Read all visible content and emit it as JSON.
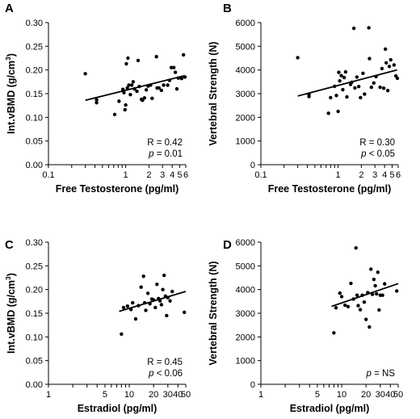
{
  "chart_data": [
    {
      "panel": "A",
      "type": "scatter",
      "xlabel": "Free Testosterone (pg/ml)",
      "ylabel_main": "Int.vBMD  (g/cm",
      "ylabel_sup": "3",
      "ylabel_end": ")",
      "xscale": "log",
      "xlim": [
        0.1,
        6
      ],
      "ylim": [
        0,
        0.3
      ],
      "xticks": [
        0.1,
        1,
        2,
        3,
        4,
        5,
        6
      ],
      "xtick_labels": [
        "0.1",
        "1",
        "2",
        "3",
        "4",
        "5",
        "6"
      ],
      "yticks": [
        0,
        0.05,
        0.1,
        0.15,
        0.2,
        0.25,
        0.3
      ],
      "ytick_labels": [
        "0.00",
        "0.05",
        "0.10",
        "0.15",
        "0.20",
        "0.25",
        "0.30"
      ],
      "stats": [
        {
          "label": "R",
          "value": "0.42"
        },
        {
          "label": "p",
          "value": "0.01",
          "op": "="
        }
      ],
      "trend": {
        "x": [
          0.3,
          5.8
        ],
        "y": [
          0.136,
          0.188
        ]
      },
      "points": [
        {
          "x": 0.3,
          "y": 0.192
        },
        {
          "x": 0.42,
          "y": 0.137
        },
        {
          "x": 0.42,
          "y": 0.131
        },
        {
          "x": 0.72,
          "y": 0.106
        },
        {
          "x": 0.82,
          "y": 0.134
        },
        {
          "x": 0.92,
          "y": 0.159
        },
        {
          "x": 0.95,
          "y": 0.152
        },
        {
          "x": 0.98,
          "y": 0.116
        },
        {
          "x": 1.0,
          "y": 0.126
        },
        {
          "x": 1.02,
          "y": 0.213
        },
        {
          "x": 1.05,
          "y": 0.162
        },
        {
          "x": 1.07,
          "y": 0.225
        },
        {
          "x": 1.1,
          "y": 0.168
        },
        {
          "x": 1.15,
          "y": 0.148
        },
        {
          "x": 1.2,
          "y": 0.168
        },
        {
          "x": 1.25,
          "y": 0.175
        },
        {
          "x": 1.3,
          "y": 0.16
        },
        {
          "x": 1.4,
          "y": 0.155
        },
        {
          "x": 1.45,
          "y": 0.22
        },
        {
          "x": 1.5,
          "y": 0.165
        },
        {
          "x": 1.6,
          "y": 0.138
        },
        {
          "x": 1.65,
          "y": 0.136
        },
        {
          "x": 1.75,
          "y": 0.141
        },
        {
          "x": 1.85,
          "y": 0.158
        },
        {
          "x": 1.95,
          "y": 0.166
        },
        {
          "x": 2.1,
          "y": 0.168
        },
        {
          "x": 2.2,
          "y": 0.14
        },
        {
          "x": 2.5,
          "y": 0.228
        },
        {
          "x": 2.55,
          "y": 0.162
        },
        {
          "x": 2.7,
          "y": 0.162
        },
        {
          "x": 2.9,
          "y": 0.157
        },
        {
          "x": 3.1,
          "y": 0.168
        },
        {
          "x": 3.5,
          "y": 0.168
        },
        {
          "x": 3.7,
          "y": 0.178
        },
        {
          "x": 3.9,
          "y": 0.205
        },
        {
          "x": 4.2,
          "y": 0.205
        },
        {
          "x": 4.4,
          "y": 0.195
        },
        {
          "x": 4.6,
          "y": 0.16
        },
        {
          "x": 4.8,
          "y": 0.183
        },
        {
          "x": 5.3,
          "y": 0.182
        },
        {
          "x": 5.6,
          "y": 0.232
        },
        {
          "x": 5.85,
          "y": 0.185
        }
      ]
    },
    {
      "panel": "B",
      "type": "scatter",
      "xlabel": "Free Testosterone (pg/ml)",
      "ylabel_main": "Vertebral Strength (N)",
      "ylabel_sup": "",
      "ylabel_end": "",
      "xscale": "log",
      "xlim": [
        0.1,
        6
      ],
      "ylim": [
        0,
        6000
      ],
      "xticks": [
        0.1,
        1,
        2,
        3,
        4,
        5,
        6
      ],
      "xtick_labels": [
        "0.1",
        "1",
        "2",
        "3",
        "4",
        "5",
        "6"
      ],
      "yticks": [
        0,
        1000,
        2000,
        3000,
        4000,
        5000,
        6000
      ],
      "ytick_labels": [
        "0",
        "1000",
        "2000",
        "3000",
        "4000",
        "5000",
        "6000"
      ],
      "stats": [
        {
          "label": "R",
          "value": "0.30"
        },
        {
          "label": "p",
          "value": "0.05",
          "op": "<"
        }
      ],
      "trend": {
        "x": [
          0.3,
          5.8
        ],
        "y": [
          2900,
          4000
        ]
      },
      "points": [
        {
          "x": 0.3,
          "y": 4520
        },
        {
          "x": 0.42,
          "y": 2960
        },
        {
          "x": 0.42,
          "y": 2880
        },
        {
          "x": 0.75,
          "y": 2170
        },
        {
          "x": 0.8,
          "y": 2830
        },
        {
          "x": 0.9,
          "y": 3310
        },
        {
          "x": 0.95,
          "y": 2920
        },
        {
          "x": 1.0,
          "y": 2250
        },
        {
          "x": 1.02,
          "y": 3900
        },
        {
          "x": 1.05,
          "y": 3540
        },
        {
          "x": 1.1,
          "y": 3760
        },
        {
          "x": 1.15,
          "y": 3170
        },
        {
          "x": 1.2,
          "y": 3680
        },
        {
          "x": 1.25,
          "y": 3920
        },
        {
          "x": 1.3,
          "y": 2860
        },
        {
          "x": 1.45,
          "y": 3390
        },
        {
          "x": 1.5,
          "y": 3480
        },
        {
          "x": 1.6,
          "y": 5760
        },
        {
          "x": 1.65,
          "y": 3240
        },
        {
          "x": 1.75,
          "y": 3700
        },
        {
          "x": 1.85,
          "y": 3300
        },
        {
          "x": 1.95,
          "y": 2830
        },
        {
          "x": 2.1,
          "y": 3860
        },
        {
          "x": 2.2,
          "y": 2980
        },
        {
          "x": 2.5,
          "y": 5780
        },
        {
          "x": 2.55,
          "y": 4480
        },
        {
          "x": 2.7,
          "y": 3270
        },
        {
          "x": 2.9,
          "y": 3450
        },
        {
          "x": 3.1,
          "y": 3720
        },
        {
          "x": 3.5,
          "y": 3270
        },
        {
          "x": 3.7,
          "y": 4060
        },
        {
          "x": 3.9,
          "y": 3230
        },
        {
          "x": 4.1,
          "y": 4880
        },
        {
          "x": 4.2,
          "y": 4300
        },
        {
          "x": 4.4,
          "y": 3130
        },
        {
          "x": 4.6,
          "y": 4150
        },
        {
          "x": 4.8,
          "y": 4430
        },
        {
          "x": 5.3,
          "y": 4210
        },
        {
          "x": 5.6,
          "y": 3750
        },
        {
          "x": 5.85,
          "y": 3650
        }
      ]
    },
    {
      "panel": "C",
      "type": "scatter",
      "xlabel": "Estradiol (pg/ml)",
      "ylabel_main": "Int.vBMD  (g/cm",
      "ylabel_sup": "3",
      "ylabel_end": ")",
      "xscale": "log",
      "xlim": [
        1,
        50
      ],
      "ylim": [
        0,
        0.3
      ],
      "xticks": [
        1,
        5,
        10,
        20,
        30,
        40,
        50
      ],
      "xtick_labels": [
        "1",
        "5",
        "10",
        "20",
        "30",
        "40",
        "50"
      ],
      "yticks": [
        0,
        0.05,
        0.1,
        0.15,
        0.2,
        0.25,
        0.3
      ],
      "ytick_labels": [
        "0.00",
        "0.05",
        "0.10",
        "0.15",
        "0.20",
        "0.25",
        "0.30"
      ],
      "stats": [
        {
          "label": "R",
          "value": "0.45"
        },
        {
          "label": "p",
          "value": "0.06",
          "op": "<"
        }
      ],
      "trend": {
        "x": [
          7.5,
          50
        ],
        "y": [
          0.154,
          0.196
        ]
      },
      "points": [
        {
          "x": 8,
          "y": 0.106
        },
        {
          "x": 8.5,
          "y": 0.162
        },
        {
          "x": 9.5,
          "y": 0.165
        },
        {
          "x": 10.5,
          "y": 0.158
        },
        {
          "x": 11,
          "y": 0.172
        },
        {
          "x": 12,
          "y": 0.138
        },
        {
          "x": 13,
          "y": 0.166
        },
        {
          "x": 14,
          "y": 0.205
        },
        {
          "x": 15,
          "y": 0.228
        },
        {
          "x": 15.5,
          "y": 0.172
        },
        {
          "x": 16,
          "y": 0.156
        },
        {
          "x": 17,
          "y": 0.192
        },
        {
          "x": 18,
          "y": 0.17
        },
        {
          "x": 19,
          "y": 0.18
        },
        {
          "x": 20,
          "y": 0.178
        },
        {
          "x": 21,
          "y": 0.162
        },
        {
          "x": 22,
          "y": 0.211
        },
        {
          "x": 23,
          "y": 0.181
        },
        {
          "x": 24,
          "y": 0.176
        },
        {
          "x": 25,
          "y": 0.168
        },
        {
          "x": 26,
          "y": 0.2
        },
        {
          "x": 27,
          "y": 0.23
        },
        {
          "x": 28,
          "y": 0.186
        },
        {
          "x": 29,
          "y": 0.145
        },
        {
          "x": 30,
          "y": 0.183
        },
        {
          "x": 32,
          "y": 0.176
        },
        {
          "x": 34,
          "y": 0.196
        },
        {
          "x": 48,
          "y": 0.152
        }
      ]
    },
    {
      "panel": "D",
      "type": "scatter",
      "xlabel": "Estradiol (pg/ml)",
      "ylabel_main": "Vertebral Strength (N)",
      "ylabel_sup": "",
      "ylabel_end": "",
      "xscale": "log",
      "xlim": [
        1,
        50
      ],
      "ylim": [
        0,
        6000
      ],
      "xticks": [
        1,
        5,
        10,
        20,
        30,
        40,
        50
      ],
      "xtick_labels": [
        "1",
        "5",
        "10",
        "20",
        "30",
        "40",
        "50"
      ],
      "yticks": [
        0,
        1000,
        2000,
        3000,
        4000,
        5000,
        6000
      ],
      "ytick_labels": [
        "0",
        "1000",
        "2000",
        "3000",
        "4000",
        "5000",
        "6000"
      ],
      "stats": [
        {
          "label": "p",
          "value": "NS",
          "op": "="
        }
      ],
      "trend": {
        "x": [
          7.5,
          50
        ],
        "y": [
          3290,
          4250
        ]
      },
      "points": [
        {
          "x": 8,
          "y": 2170
        },
        {
          "x": 8.5,
          "y": 3230
        },
        {
          "x": 9.5,
          "y": 3850
        },
        {
          "x": 10,
          "y": 3700
        },
        {
          "x": 11,
          "y": 3340
        },
        {
          "x": 12,
          "y": 3280
        },
        {
          "x": 13,
          "y": 4260
        },
        {
          "x": 14,
          "y": 3600
        },
        {
          "x": 15,
          "y": 5760
        },
        {
          "x": 15.5,
          "y": 3760
        },
        {
          "x": 16,
          "y": 3320
        },
        {
          "x": 17,
          "y": 3150
        },
        {
          "x": 18,
          "y": 3760
        },
        {
          "x": 19,
          "y": 3470
        },
        {
          "x": 20,
          "y": 2740
        },
        {
          "x": 21,
          "y": 3870
        },
        {
          "x": 22,
          "y": 2420
        },
        {
          "x": 23,
          "y": 4860
        },
        {
          "x": 24,
          "y": 3800
        },
        {
          "x": 25,
          "y": 4430
        },
        {
          "x": 26,
          "y": 4160
        },
        {
          "x": 27,
          "y": 3820
        },
        {
          "x": 28,
          "y": 4730
        },
        {
          "x": 29,
          "y": 3140
        },
        {
          "x": 30,
          "y": 3760
        },
        {
          "x": 32,
          "y": 3760
        },
        {
          "x": 34,
          "y": 4240
        },
        {
          "x": 48,
          "y": 3940
        }
      ]
    }
  ]
}
